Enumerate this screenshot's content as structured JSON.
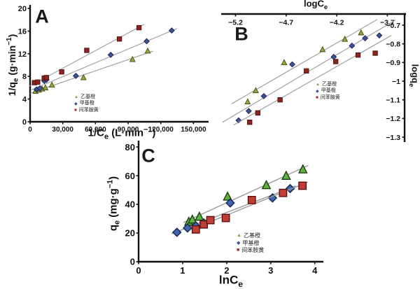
{
  "figure": {
    "background": "#ffffff",
    "trend_line_color": "#9a9a9a",
    "axis_color": "#111111"
  },
  "legend": {
    "items": [
      {
        "label": "乙基橙",
        "glyph": "▲",
        "color": "#6fa43c"
      },
      {
        "label": "甲基橙",
        "glyph": "◆",
        "color": "#3c5494"
      },
      {
        "label": "间苯胺黄",
        "glyph": "■",
        "color": "#9e2b26"
      }
    ]
  },
  "chart_data": [
    {
      "id": "A",
      "type": "scatter",
      "panel_label": "A",
      "xlabel_text": "1/Ce (L·min−1)",
      "ylabel_text": "1/qe (g·min−1)",
      "xlabel_parts": [
        {
          "t": "1/C"
        },
        {
          "t": "e",
          "s": "sub"
        },
        {
          "t": " (L·min"
        },
        {
          "t": "−1",
          "s": "sup"
        },
        {
          "t": ")"
        }
      ],
      "ylabel_parts": [
        {
          "t": "1/q"
        },
        {
          "t": "e",
          "s": "sub"
        },
        {
          "t": " (g·min"
        },
        {
          "t": "−1",
          "s": "sup"
        },
        {
          "t": ")"
        }
      ],
      "xlim": [
        0,
        160000
      ],
      "ylim": [
        0,
        20
      ],
      "x_ticks": [
        {
          "v": 0,
          "label": "0"
        },
        {
          "v": 30000,
          "label": "30,000"
        },
        {
          "v": 60000,
          "label": "60,000"
        },
        {
          "v": 90000,
          "label": "90,000"
        },
        {
          "v": 120000,
          "label": "120,000"
        },
        {
          "v": 150000,
          "label": "150,000"
        }
      ],
      "y_ticks": [
        {
          "v": 0,
          "label": "0"
        },
        {
          "v": 4,
          "label": "4"
        },
        {
          "v": 8,
          "label": "8"
        },
        {
          "v": 12,
          "label": "12"
        },
        {
          "v": 16,
          "label": "16"
        },
        {
          "v": 20,
          "label": "20"
        }
      ],
      "series": [
        {
          "name": "乙基橙",
          "marker": "triangle",
          "fill": "#97a83c",
          "stroke": "#44490f",
          "x": [
            5000,
            8000,
            11000,
            14000,
            20000,
            49000,
            94000,
            108000
          ],
          "y": [
            5.4,
            5.6,
            5.8,
            6.0,
            6.5,
            7.8,
            11.0,
            12.5
          ]
        },
        {
          "name": "甲基橙",
          "marker": "diamond",
          "fill": "#3c5494",
          "stroke": "#18224e",
          "x": [
            6000,
            9000,
            13000,
            15000,
            42000,
            74000,
            107000,
            130000
          ],
          "y": [
            5.7,
            5.9,
            7.2,
            7.4,
            8.1,
            11.8,
            14.2,
            16.1
          ]
        },
        {
          "name": "间苯胺黄",
          "marker": "square",
          "fill": "#8e2420",
          "stroke": "#4c0c0a",
          "x": [
            4000,
            7000,
            13000,
            15000,
            29000,
            52000,
            82000,
            100000
          ],
          "y": [
            6.9,
            7.0,
            7.7,
            7.8,
            8.8,
            12.6,
            14.6,
            16.6
          ]
        }
      ]
    },
    {
      "id": "B",
      "type": "scatter",
      "panel_label": "B",
      "xlabel_text": "logCe",
      "ylabel_text": "logqe",
      "xlabel_parts": [
        {
          "t": "logC"
        },
        {
          "t": "e",
          "s": "sub"
        }
      ],
      "ylabel_parts": [
        {
          "t": "logq"
        },
        {
          "t": "e",
          "s": "sub"
        }
      ],
      "xlim": [
        -5.3,
        -3.53
      ],
      "ylim": [
        -1.315,
        -0.64
      ],
      "x_ticks": [
        {
          "v": -5.2,
          "label": "−5.2"
        },
        {
          "v": -4.7,
          "label": "−4.7"
        },
        {
          "v": -4.2,
          "label": "−4.2"
        },
        {
          "v": -3.7,
          "label": "−3.7"
        }
      ],
      "y_ticks": [
        {
          "v": -0.7,
          "label": "−0.7"
        },
        {
          "v": -0.8,
          "label": "−0.8"
        },
        {
          "v": -0.9,
          "label": "−0.9"
        },
        {
          "v": -1.0,
          "label": "−1"
        },
        {
          "v": -1.1,
          "label": "−1.1"
        },
        {
          "v": -1.2,
          "label": "−1.2"
        },
        {
          "v": -1.3,
          "label": "−1.3"
        }
      ],
      "series": [
        {
          "name": "乙基橙",
          "marker": "triangle",
          "fill": "#97a83c",
          "stroke": "#44490f",
          "x": [
            -5.08,
            -5.0,
            -4.72,
            -4.34,
            -4.12,
            -3.96
          ],
          "y": [
            -1.11,
            -1.05,
            -0.9,
            -0.83,
            -0.775,
            -0.74
          ]
        },
        {
          "name": "甲基橙",
          "marker": "diamond",
          "fill": "#3c5494",
          "stroke": "#18224e",
          "x": [
            -5.17,
            -5.07,
            -4.92,
            -4.64,
            -4.23,
            -4.05,
            -3.92,
            -3.78
          ],
          "y": [
            -1.21,
            -1.16,
            -1.08,
            -0.91,
            -0.87,
            -0.81,
            -0.77,
            -0.755
          ]
        },
        {
          "name": "间苯胺黄",
          "marker": "square",
          "fill": "#8e2420",
          "stroke": "#4c0c0a",
          "x": [
            -5.06,
            -4.98,
            -4.76,
            -4.5,
            -4.21,
            -3.99,
            -3.82
          ],
          "y": [
            -1.22,
            -1.17,
            -1.1,
            -0.945,
            -0.895,
            -0.86,
            -0.85
          ]
        }
      ]
    },
    {
      "id": "C",
      "type": "scatter",
      "panel_label": "C",
      "xlabel_text": "lnCe",
      "ylabel_text": "qe (mg·g−1)",
      "xlabel_parts": [
        {
          "t": "lnC"
        },
        {
          "t": "e",
          "s": "sub"
        }
      ],
      "ylabel_parts": [
        {
          "t": "q"
        },
        {
          "t": "e",
          "s": "sub"
        },
        {
          "t": " (mg·g"
        },
        {
          "t": "−1",
          "s": "sup"
        },
        {
          "t": ")"
        }
      ],
      "xlim": [
        0,
        4.1
      ],
      "ylim": [
        0,
        82
      ],
      "x_ticks": [
        {
          "v": 0,
          "label": "0"
        },
        {
          "v": 1,
          "label": "1"
        },
        {
          "v": 2,
          "label": "2"
        },
        {
          "v": 3,
          "label": "3"
        },
        {
          "v": 4,
          "label": "4"
        }
      ],
      "y_ticks": [
        {
          "v": 0,
          "label": "0"
        },
        {
          "v": 20,
          "label": "20"
        },
        {
          "v": 40,
          "label": "40"
        },
        {
          "v": 60,
          "label": "60"
        },
        {
          "v": 80,
          "label": "80"
        }
      ],
      "series": [
        {
          "name": "乙基橙",
          "marker": "triangle",
          "fill": "#5eb43c",
          "stroke": "#1e3c14",
          "x": [
            1.14,
            1.22,
            1.38,
            2.02,
            2.9,
            3.35,
            3.73
          ],
          "y": [
            28,
            29.5,
            31.5,
            45.5,
            53.5,
            60,
            64.5
          ]
        },
        {
          "name": "甲基橙",
          "marker": "diamond",
          "fill": "#3f67ad",
          "stroke": "#16254f",
          "x": [
            0.87,
            1.11,
            1.3,
            1.48,
            2.08,
            3.04,
            3.44
          ],
          "y": [
            20.5,
            23.5,
            25,
            27,
            41,
            44.5,
            51
          ]
        },
        {
          "name": "间苯胺黄",
          "marker": "square",
          "fill": "#bf3f38",
          "stroke": "#5c100e",
          "x": [
            1.3,
            1.48,
            1.63,
            1.98,
            2.57,
            3.28,
            3.72
          ],
          "y": [
            22.5,
            26,
            29,
            30.5,
            43,
            48,
            53
          ]
        }
      ]
    }
  ]
}
